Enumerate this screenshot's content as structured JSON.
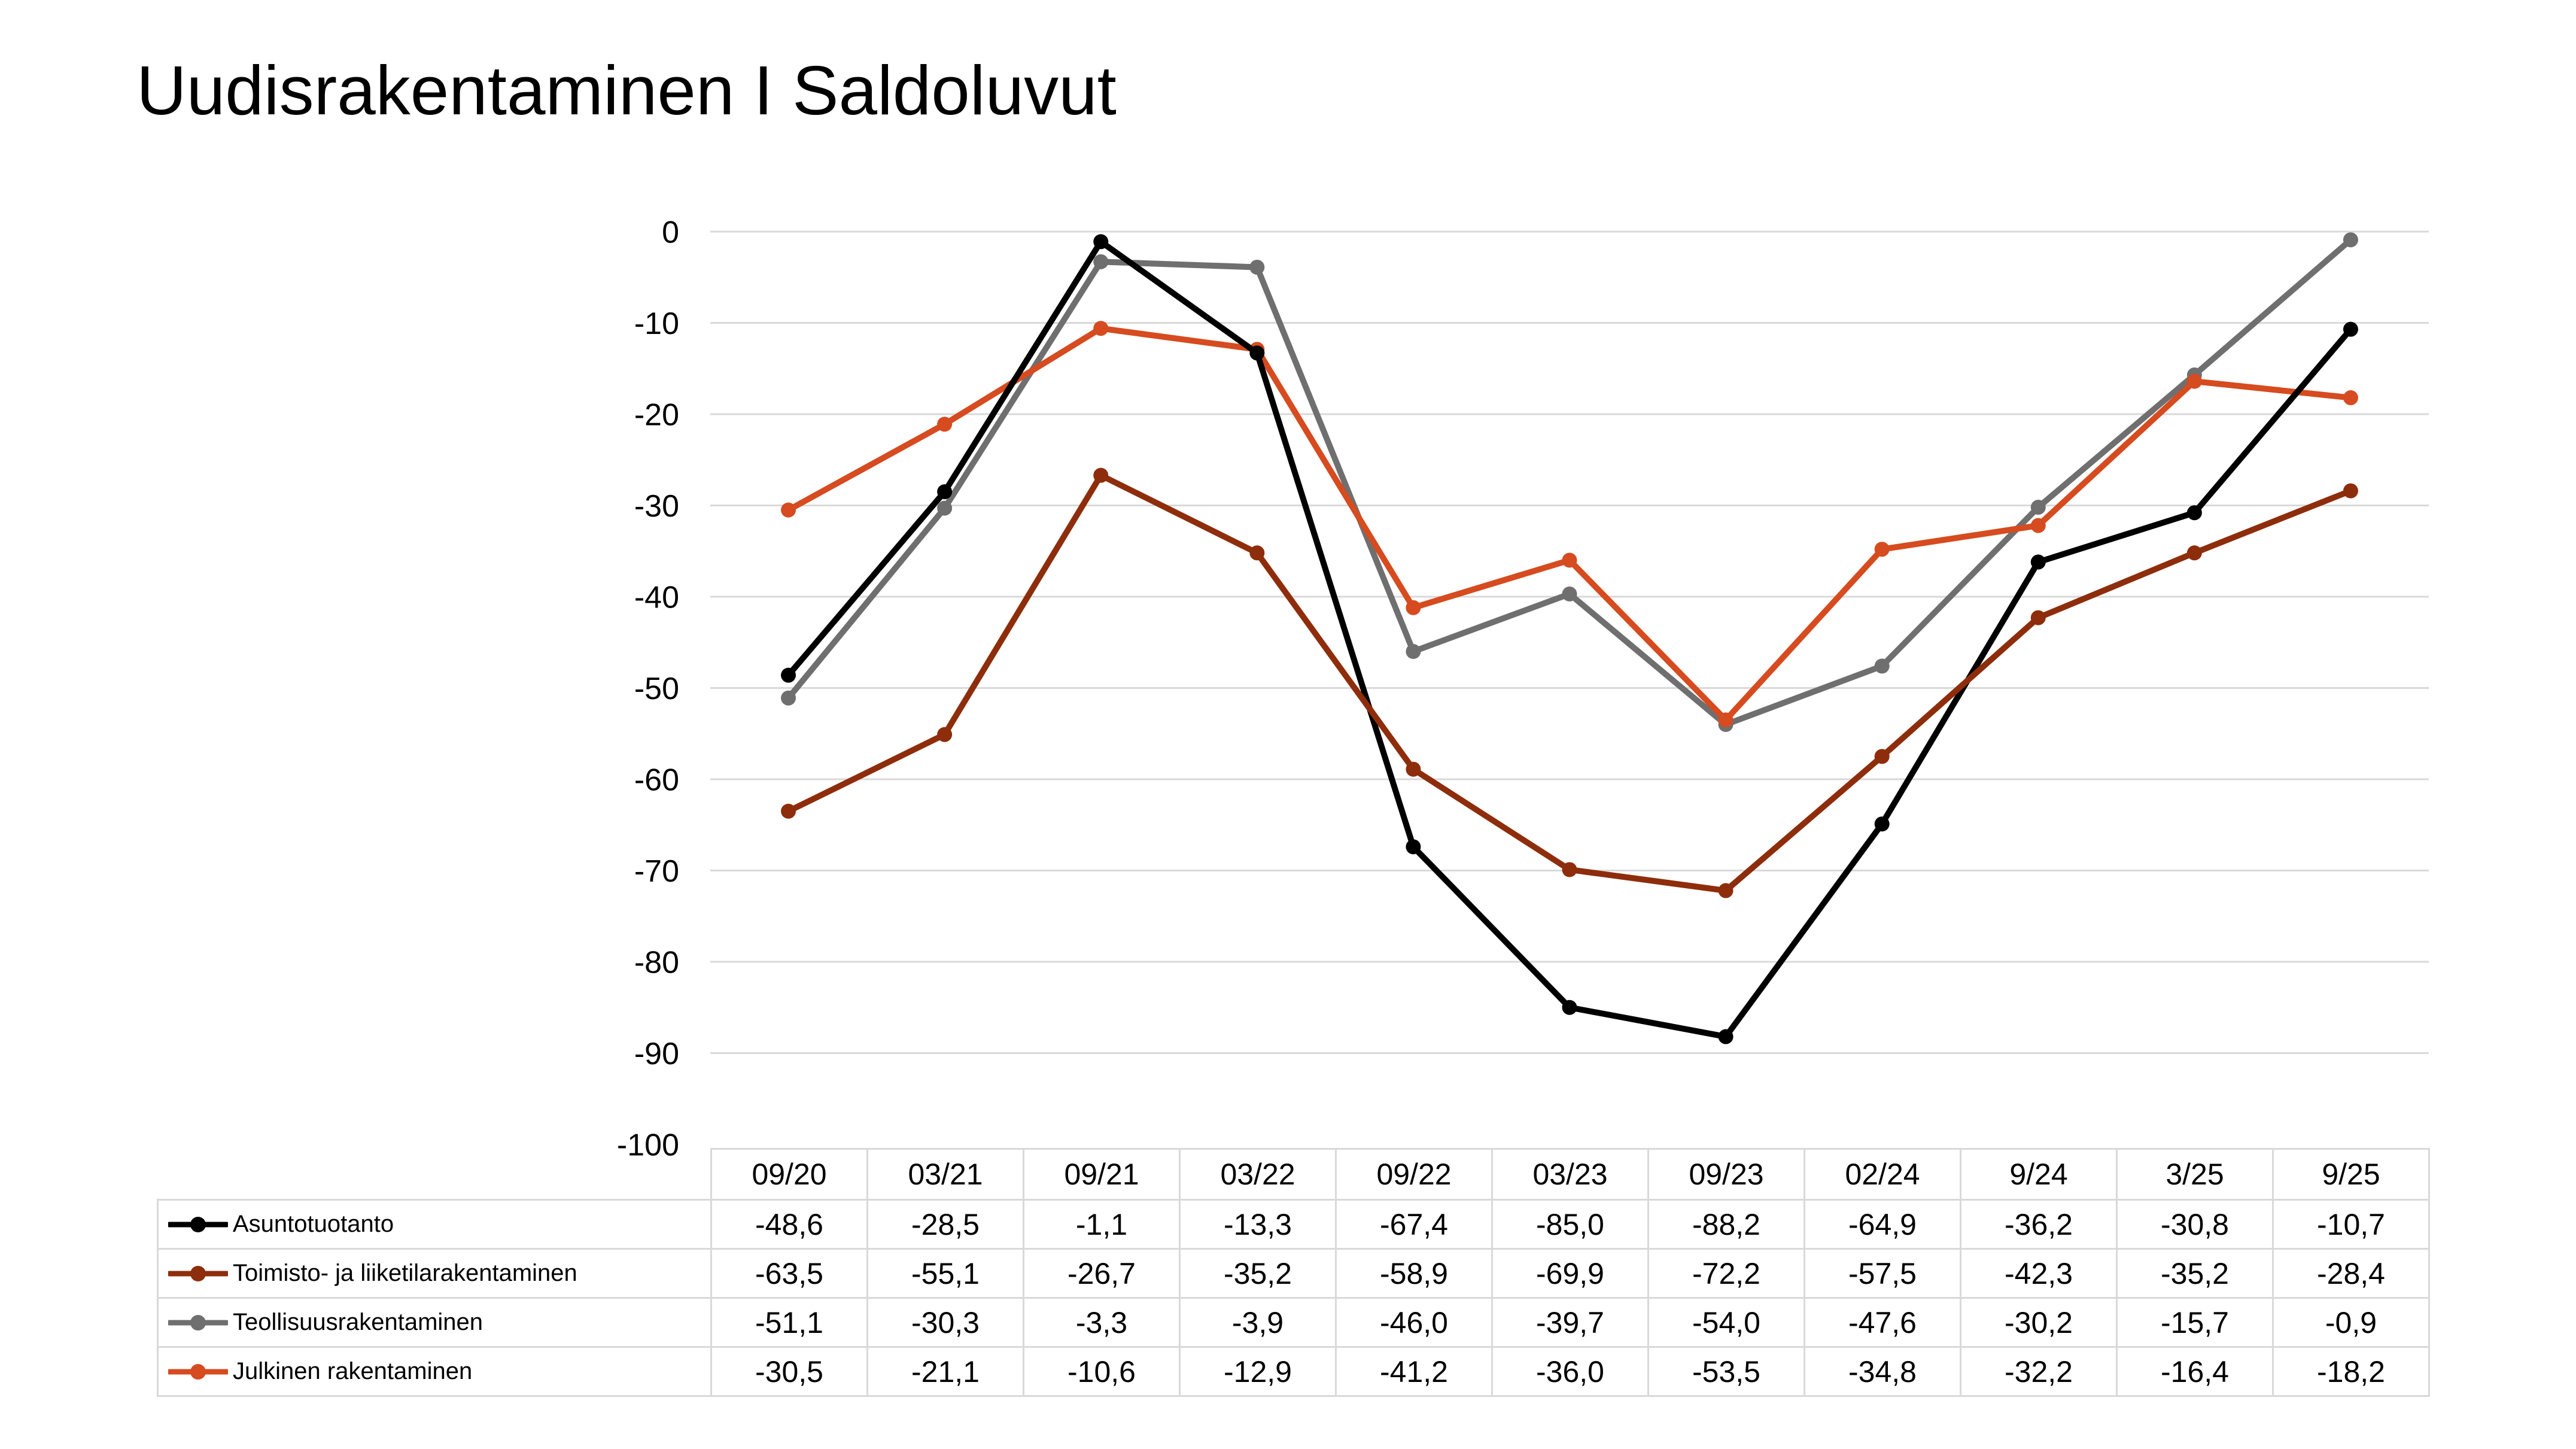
{
  "title": "Uudisrakentaminen I Saldoluvut",
  "chart_data": {
    "type": "line",
    "title": "Uudisrakentaminen I Saldoluvut",
    "categories": [
      "09/20",
      "03/21",
      "09/21",
      "03/22",
      "09/22",
      "03/23",
      "09/23",
      "02/24",
      "9/24",
      "3/25",
      "9/25"
    ],
    "series": [
      {
        "name": "Asuntotuotanto",
        "color": "#000000",
        "values": [
          -48.6,
          -28.5,
          -1.1,
          -13.3,
          -67.4,
          -85.0,
          -88.2,
          -64.9,
          -36.2,
          -30.8,
          -10.7
        ]
      },
      {
        "name": "Toimisto- ja liiketilarakentaminen",
        "color": "#8E2D0B",
        "values": [
          -63.5,
          -55.1,
          -26.7,
          -35.2,
          -58.9,
          -69.9,
          -72.2,
          -57.5,
          -42.3,
          -35.2,
          -28.4
        ]
      },
      {
        "name": "Teollisuusrakentaminen",
        "color": "#6F6F6F",
        "values": [
          -51.1,
          -30.3,
          -3.3,
          -3.9,
          -46.0,
          -39.7,
          -54.0,
          -47.6,
          -30.2,
          -15.7,
          -0.9
        ]
      },
      {
        "name": "Julkinen rakentaminen",
        "color": "#D64B1F",
        "values": [
          -30.5,
          -21.1,
          -10.6,
          -12.9,
          -41.2,
          -36.0,
          -53.5,
          -34.8,
          -32.2,
          -16.4,
          -18.2
        ]
      }
    ],
    "ylim": [
      -100,
      0
    ],
    "y_ticks": [
      "0",
      "-10",
      "-20",
      "-30",
      "-40",
      "-50",
      "-60",
      "-70",
      "-80",
      "-90",
      "-100"
    ],
    "grid": true,
    "gridline_color": "#D9D9D9",
    "marker_style": "filled-circle",
    "legend_position": "data-table-left",
    "draw_order": [
      2,
      3,
      0,
      1
    ],
    "number_format": {
      "decimals": 1,
      "decimal_separator": ","
    }
  }
}
